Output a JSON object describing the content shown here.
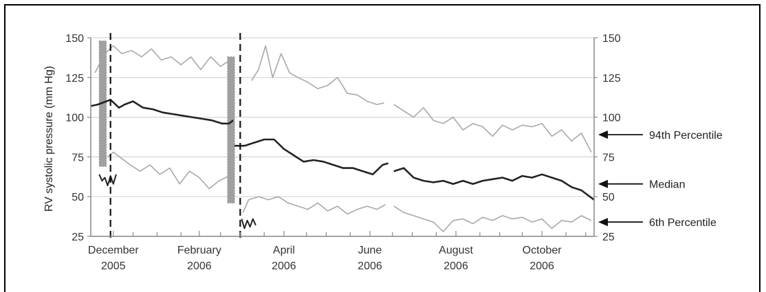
{
  "chart_data": {
    "type": "line",
    "ylabel": "RV systolic pressure (mm Hg)",
    "ylim": [
      25,
      150
    ],
    "yticks": [
      25,
      50,
      75,
      100,
      125,
      150
    ],
    "right_yticks": [
      25,
      50,
      75,
      100,
      125,
      150
    ],
    "xlim": [
      "2005-11-28",
      "2006-11-20"
    ],
    "xticks": [
      {
        "date": "2005-12-14",
        "label1": "December",
        "label2": "2005"
      },
      {
        "date": "2006-02-13",
        "label1": "February",
        "label2": "2006"
      },
      {
        "date": "2006-04-14",
        "label1": "April",
        "label2": "2006"
      },
      {
        "date": "2006-06-14",
        "label1": "June",
        "label2": "2006"
      },
      {
        "date": "2006-08-14",
        "label1": "August",
        "label2": "2006"
      },
      {
        "date": "2006-10-14",
        "label1": "October",
        "label2": "2006"
      }
    ],
    "grid": true,
    "series": [
      {
        "name": "94th Percentile",
        "color": "#a8a8a8",
        "segments": [
          [
            [
              "2005-12-01",
              128
            ],
            [
              "2005-12-08",
              140
            ],
            [
              "2005-12-14",
              145
            ],
            [
              "2005-12-20",
              140
            ],
            [
              "2005-12-27",
              142
            ],
            [
              "2006-01-03",
              138
            ],
            [
              "2006-01-10",
              143
            ],
            [
              "2006-01-17",
              136
            ],
            [
              "2006-01-24",
              138
            ],
            [
              "2006-01-31",
              133
            ],
            [
              "2006-02-07",
              138
            ],
            [
              "2006-02-14",
              130
            ],
            [
              "2006-02-21",
              138
            ],
            [
              "2006-02-28",
              132
            ],
            [
              "2006-03-07",
              136
            ]
          ],
          [
            [
              "2006-03-22",
              123
            ],
            [
              "2006-03-27",
              130
            ],
            [
              "2006-04-01",
              145
            ],
            [
              "2006-04-06",
              125
            ],
            [
              "2006-04-12",
              140
            ],
            [
              "2006-04-18",
              128
            ],
            [
              "2006-04-24",
              125
            ],
            [
              "2006-05-01",
              122
            ],
            [
              "2006-05-08",
              118
            ],
            [
              "2006-05-15",
              120
            ],
            [
              "2006-05-22",
              125
            ],
            [
              "2006-05-29",
              115
            ],
            [
              "2006-06-05",
              114
            ],
            [
              "2006-06-12",
              110
            ],
            [
              "2006-06-19",
              108
            ],
            [
              "2006-06-24",
              109
            ]
          ],
          [
            [
              "2006-07-01",
              108
            ],
            [
              "2006-07-08",
              104
            ],
            [
              "2006-07-15",
              100
            ],
            [
              "2006-07-22",
              106
            ],
            [
              "2006-07-29",
              98
            ],
            [
              "2006-08-05",
              96
            ],
            [
              "2006-08-12",
              100
            ],
            [
              "2006-08-19",
              92
            ],
            [
              "2006-08-26",
              96
            ],
            [
              "2006-09-02",
              94
            ],
            [
              "2006-09-09",
              88
            ],
            [
              "2006-09-16",
              95
            ],
            [
              "2006-09-23",
              92
            ],
            [
              "2006-09-30",
              95
            ],
            [
              "2006-10-07",
              94
            ],
            [
              "2006-10-14",
              96
            ],
            [
              "2006-10-21",
              88
            ],
            [
              "2006-10-28",
              92
            ],
            [
              "2006-11-04",
              85
            ],
            [
              "2006-11-11",
              90
            ],
            [
              "2006-11-18",
              78
            ]
          ]
        ]
      },
      {
        "name": "Median",
        "color": "#222222",
        "segments": [
          [
            [
              "2005-11-28",
              107
            ],
            [
              "2005-12-03",
              108
            ],
            [
              "2005-12-09",
              110
            ],
            [
              "2005-12-12",
              111
            ],
            [
              "2005-12-18",
              106
            ],
            [
              "2005-12-22",
              108
            ],
            [
              "2005-12-28",
              110
            ],
            [
              "2006-01-04",
              106
            ],
            [
              "2006-01-11",
              105
            ],
            [
              "2006-01-18",
              103
            ],
            [
              "2006-01-25",
              102
            ],
            [
              "2006-02-01",
              101
            ],
            [
              "2006-02-08",
              100
            ],
            [
              "2006-02-15",
              99
            ],
            [
              "2006-02-22",
              98
            ],
            [
              "2006-03-01",
              96
            ],
            [
              "2006-03-06",
              96
            ],
            [
              "2006-03-09",
              98
            ]
          ],
          [
            [
              "2006-03-10",
              82
            ],
            [
              "2006-03-17",
              82
            ],
            [
              "2006-03-24",
              84
            ],
            [
              "2006-03-31",
              86
            ],
            [
              "2006-04-07",
              86
            ],
            [
              "2006-04-14",
              80
            ],
            [
              "2006-04-21",
              76
            ],
            [
              "2006-04-28",
              72
            ],
            [
              "2006-05-05",
              73
            ],
            [
              "2006-05-12",
              72
            ],
            [
              "2006-05-19",
              70
            ],
            [
              "2006-05-26",
              68
            ],
            [
              "2006-06-02",
              68
            ],
            [
              "2006-06-09",
              66
            ],
            [
              "2006-06-16",
              64
            ],
            [
              "2006-06-23",
              70
            ],
            [
              "2006-06-27",
              71
            ]
          ],
          [
            [
              "2006-07-01",
              66
            ],
            [
              "2006-07-08",
              68
            ],
            [
              "2006-07-15",
              62
            ],
            [
              "2006-07-22",
              60
            ],
            [
              "2006-07-29",
              59
            ],
            [
              "2006-08-05",
              60
            ],
            [
              "2006-08-12",
              58
            ],
            [
              "2006-08-19",
              60
            ],
            [
              "2006-08-26",
              58
            ],
            [
              "2006-09-02",
              60
            ],
            [
              "2006-09-09",
              61
            ],
            [
              "2006-09-16",
              62
            ],
            [
              "2006-09-23",
              60
            ],
            [
              "2006-09-30",
              63
            ],
            [
              "2006-10-07",
              62
            ],
            [
              "2006-10-14",
              64
            ],
            [
              "2006-10-21",
              62
            ],
            [
              "2006-10-28",
              60
            ],
            [
              "2006-11-04",
              56
            ],
            [
              "2006-11-11",
              54
            ],
            [
              "2006-11-20",
              48
            ]
          ]
        ]
      },
      {
        "name": "6th Percentile",
        "color": "#a8a8a8",
        "segments": [
          [
            [
              "2005-12-10",
              75
            ],
            [
              "2005-12-14",
              78
            ],
            [
              "2005-12-20",
              74
            ],
            [
              "2005-12-26",
              70
            ],
            [
              "2006-01-02",
              66
            ],
            [
              "2006-01-09",
              70
            ],
            [
              "2006-01-16",
              64
            ],
            [
              "2006-01-23",
              68
            ],
            [
              "2006-01-30",
              58
            ],
            [
              "2006-02-06",
              66
            ],
            [
              "2006-02-13",
              62
            ],
            [
              "2006-02-20",
              55
            ],
            [
              "2006-02-27",
              60
            ],
            [
              "2006-03-06",
              63
            ]
          ],
          [
            [
              "2006-03-16",
              40
            ],
            [
              "2006-03-20",
              48
            ],
            [
              "2006-03-27",
              50
            ],
            [
              "2006-04-03",
              48
            ],
            [
              "2006-04-10",
              50
            ],
            [
              "2006-04-17",
              46
            ],
            [
              "2006-04-24",
              44
            ],
            [
              "2006-05-01",
              42
            ],
            [
              "2006-05-08",
              46
            ],
            [
              "2006-05-15",
              41
            ],
            [
              "2006-05-22",
              44
            ],
            [
              "2006-05-29",
              39
            ],
            [
              "2006-06-05",
              42
            ],
            [
              "2006-06-12",
              44
            ],
            [
              "2006-06-19",
              42
            ],
            [
              "2006-06-25",
              45
            ]
          ],
          [
            [
              "2006-07-01",
              44
            ],
            [
              "2006-07-08",
              40
            ],
            [
              "2006-07-15",
              38
            ],
            [
              "2006-07-22",
              36
            ],
            [
              "2006-07-29",
              34
            ],
            [
              "2006-08-05",
              28
            ],
            [
              "2006-08-12",
              35
            ],
            [
              "2006-08-19",
              36
            ],
            [
              "2006-08-26",
              33
            ],
            [
              "2006-09-02",
              37
            ],
            [
              "2006-09-09",
              35
            ],
            [
              "2006-09-16",
              38
            ],
            [
              "2006-09-23",
              36
            ],
            [
              "2006-09-30",
              37
            ],
            [
              "2006-10-07",
              34
            ],
            [
              "2006-10-14",
              36
            ],
            [
              "2006-10-21",
              30
            ],
            [
              "2006-10-28",
              35
            ],
            [
              "2006-11-04",
              34
            ],
            [
              "2006-11-11",
              38
            ],
            [
              "2006-11-18",
              35
            ]
          ]
        ]
      }
    ],
    "measurements": [
      {
        "color": "#222222",
        "points": [
          [
            "2005-12-04",
            64
          ],
          [
            "2005-12-06",
            60
          ],
          [
            "2005-12-08",
            62
          ],
          [
            "2005-12-10",
            57
          ],
          [
            "2005-12-12",
            63
          ],
          [
            "2005-12-14",
            58
          ],
          [
            "2005-12-16",
            64
          ]
        ]
      },
      {
        "color": "#222222",
        "points": [
          [
            "2006-03-15",
            36
          ],
          [
            "2006-03-17",
            30
          ],
          [
            "2006-03-19",
            35
          ],
          [
            "2006-03-21",
            31
          ],
          [
            "2006-03-23",
            36
          ],
          [
            "2006-03-25",
            32
          ]
        ]
      }
    ],
    "shaded_bands": [
      {
        "from": "2005-12-04",
        "to": "2005-12-09",
        "ymin": 69,
        "ymax": 148,
        "color": "#a0a0a0"
      },
      {
        "from": "2006-03-05",
        "to": "2006-03-10",
        "ymin": 46,
        "ymax": 138,
        "color": "#a0a0a0"
      }
    ],
    "event_lines": [
      "2005-12-12",
      "2006-03-14"
    ],
    "annotations": [
      {
        "text": "94th Percentile",
        "y": 89
      },
      {
        "text": "Median",
        "y": 58
      },
      {
        "text": "6th Percentile",
        "y": 34
      }
    ]
  }
}
